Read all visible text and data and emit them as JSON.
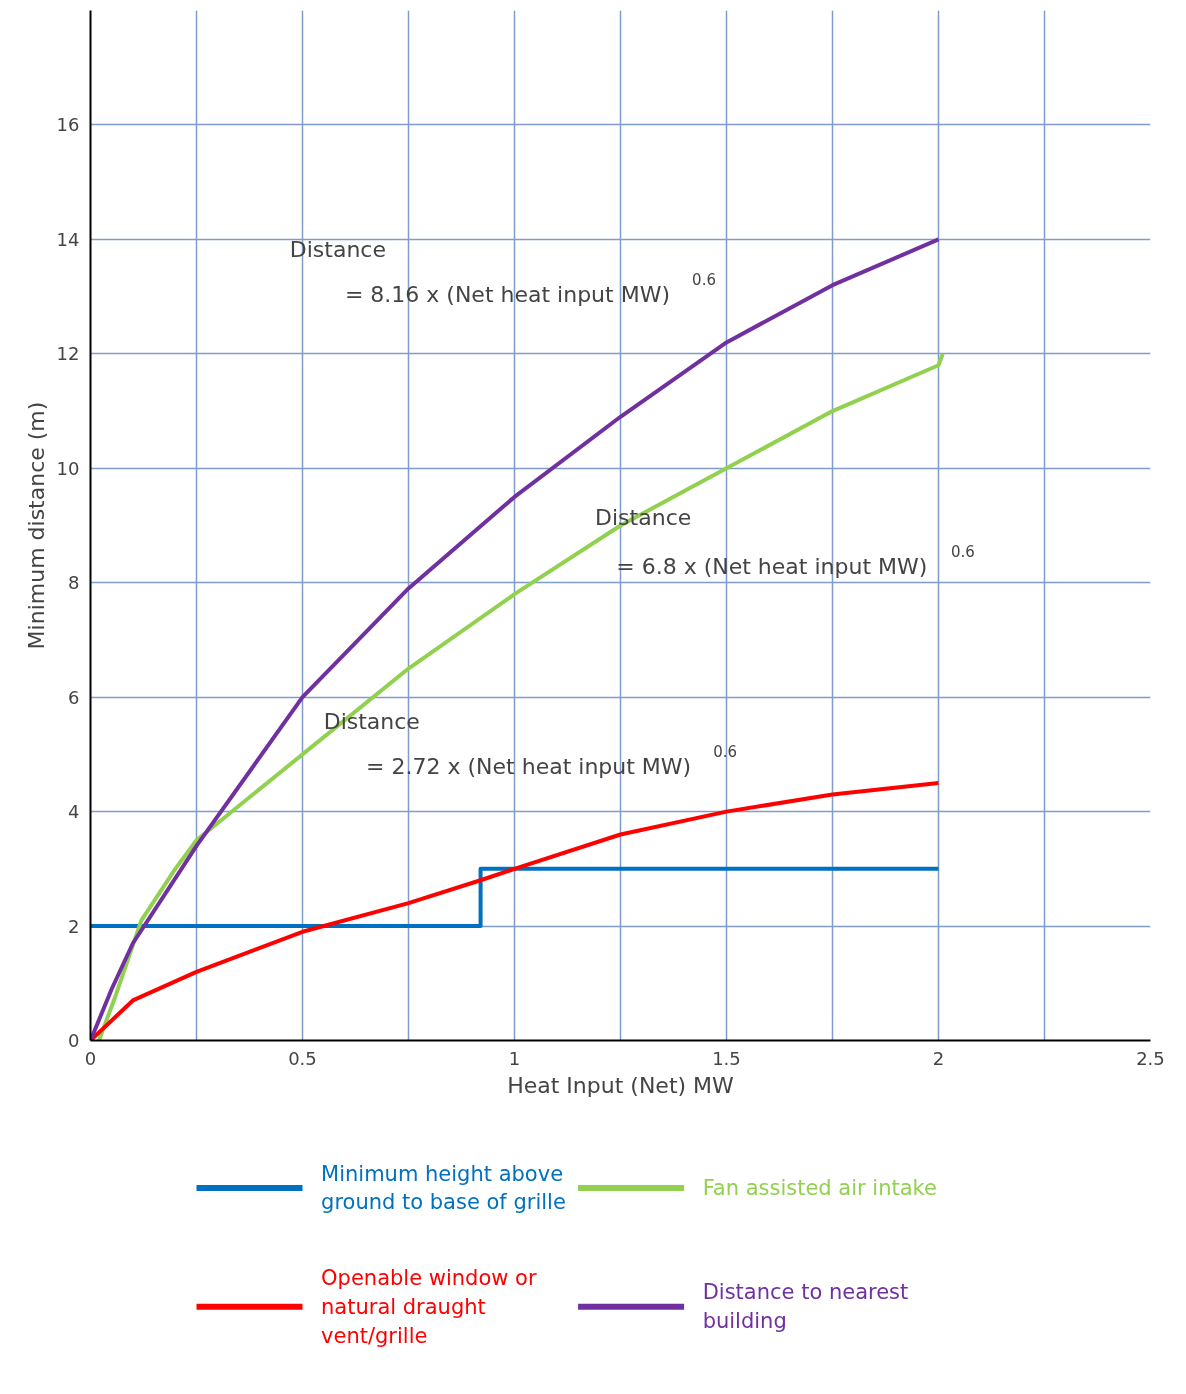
{
  "chart_data": {
    "type": "line",
    "xlabel": "Heat Input (Net) MW",
    "ylabel": "Minimum distance (m)",
    "xlim": [
      0,
      2.5
    ],
    "ylim": [
      0,
      18
    ],
    "xticks": [
      0,
      {
        "value": 0.25,
        "label": null
      },
      0.5,
      {
        "value": 0.75,
        "label": null
      },
      1,
      {
        "value": 1.25,
        "label": null
      },
      1.5,
      {
        "value": 1.75,
        "label": null
      },
      2,
      {
        "value": 2.25,
        "label": null
      },
      2.5
    ],
    "yticks": [
      0,
      2,
      4,
      6,
      8,
      10,
      12,
      14,
      16
    ],
    "grid": true,
    "legend": "bottom",
    "line_style": "solid",
    "marker": "none",
    "series": [
      {
        "name": "Minimum height above ground to base of grille",
        "color": "#0070c0",
        "type": "step",
        "x": [
          0,
          0.92,
          2
        ],
        "values": [
          2,
          3,
          3
        ]
      },
      {
        "name": "Fan assisted air intake",
        "color": "#92d050",
        "x": [
          0.02,
          0.06,
          0.12,
          0.2,
          0.25,
          0.5,
          0.75,
          1,
          1.25,
          1.5,
          1.75,
          2,
          2.01
        ],
        "values": [
          0,
          0.8,
          2.1,
          3.0,
          3.5,
          5.0,
          6.5,
          7.8,
          9.0,
          10.0,
          11.0,
          11.8,
          12.0
        ]
      },
      {
        "name": "Openable window or natural draught vent/grille",
        "color": "#ff0000",
        "x": [
          0,
          0.1,
          0.25,
          0.5,
          0.75,
          0.92,
          1,
          1.25,
          1.5,
          1.75,
          2
        ],
        "values": [
          0,
          0.7,
          1.2,
          1.9,
          2.4,
          2.8,
          3.0,
          3.6,
          4.0,
          4.3,
          4.5
        ]
      },
      {
        "name": "Distance to nearest building",
        "color": "#7030a0",
        "x": [
          0,
          0.05,
          0.1,
          0.25,
          0.5,
          0.75,
          1,
          1.25,
          1.5,
          1.75,
          2
        ],
        "values": [
          0,
          0.9,
          1.7,
          3.4,
          6.0,
          7.9,
          9.5,
          10.9,
          12.2,
          13.2,
          14.0
        ]
      }
    ],
    "annotations": [
      "Distance",
      "= 8.16 x (Net heat input MW)$^{0.6}$",
      "Distance",
      "= 6.8 x (Net heat input MW)$^{0.6}$",
      "Distance",
      "= 2.72 x (Net heat input MW)$^{0.6}$"
    ]
  }
}
